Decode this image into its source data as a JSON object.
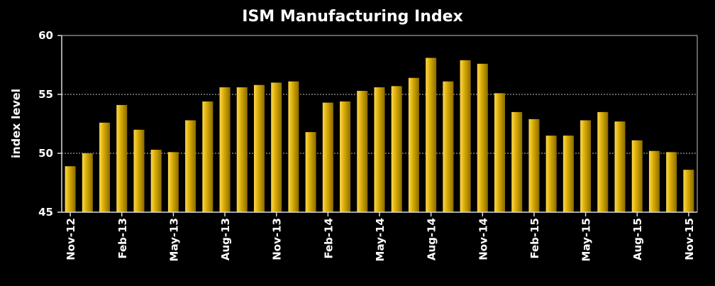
{
  "chart_data": {
    "type": "bar",
    "title": "ISM Manufacturing Index",
    "xlabel": "",
    "ylabel": "index level",
    "ylim": [
      45,
      60
    ],
    "yticks": [
      45,
      50,
      55,
      60
    ],
    "grid": true,
    "categories": [
      "Nov-12",
      "Dec-12",
      "Jan-13",
      "Feb-13",
      "Mar-13",
      "Apr-13",
      "May-13",
      "Jun-13",
      "Jul-13",
      "Aug-13",
      "Sep-13",
      "Oct-13",
      "Nov-13",
      "Dec-13",
      "Jan-14",
      "Feb-14",
      "Mar-14",
      "Apr-14",
      "May-14",
      "Jun-14",
      "Jul-14",
      "Aug-14",
      "Sep-14",
      "Oct-14",
      "Nov-14",
      "Dec-14",
      "Jan-15",
      "Feb-15",
      "Mar-15",
      "Apr-15",
      "May-15",
      "Jun-15",
      "Jul-15",
      "Aug-15",
      "Sep-15",
      "Oct-15",
      "Nov-15"
    ],
    "labeled_categories": [
      "Nov-12",
      "Feb-13",
      "May-13",
      "Aug-13",
      "Nov-13",
      "Feb-14",
      "May-14",
      "Aug-14",
      "Nov-14",
      "Feb-15",
      "May-15",
      "Aug-15",
      "Nov-15"
    ],
    "values": [
      48.9,
      50.0,
      52.6,
      54.1,
      52.0,
      50.3,
      50.1,
      52.8,
      54.4,
      55.6,
      55.6,
      55.8,
      56.0,
      56.1,
      51.8,
      54.3,
      54.4,
      55.3,
      55.6,
      55.7,
      56.4,
      58.1,
      56.1,
      57.9,
      57.6,
      55.1,
      53.5,
      52.9,
      51.5,
      51.5,
      52.8,
      53.5,
      52.7,
      51.1,
      50.2,
      50.1,
      48.6
    ]
  },
  "colors": {
    "background": "#000000",
    "bar_light": "#ffd84a",
    "bar_dark": "#8a6a00",
    "bar_mid": "#d4a800",
    "text": "#ffffff",
    "gridline": "#bfbfbf",
    "axis": "#d9d9d9"
  }
}
